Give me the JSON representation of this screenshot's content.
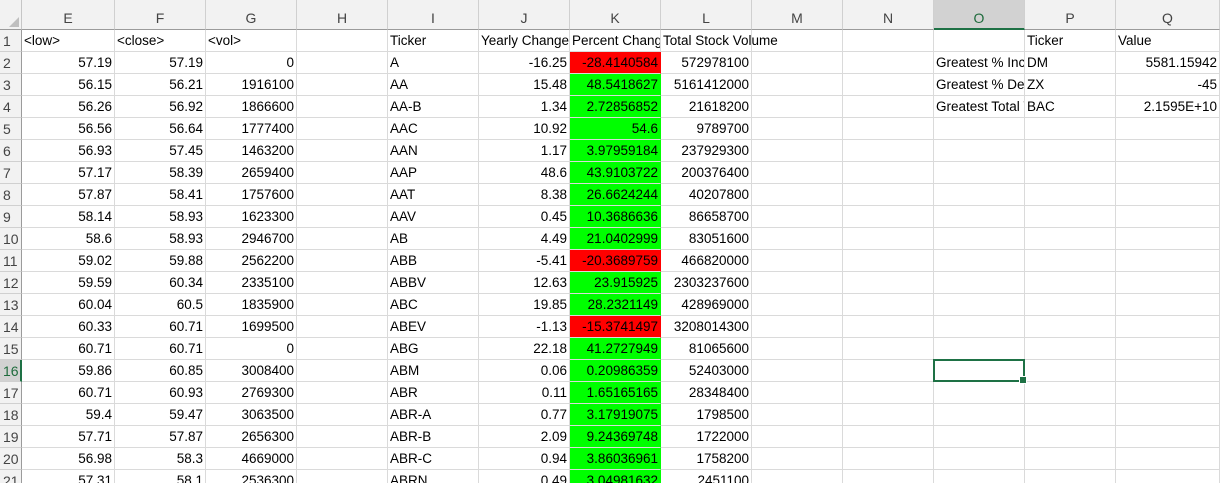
{
  "columns": [
    "E",
    "F",
    "G",
    "H",
    "I",
    "J",
    "K",
    "L",
    "M",
    "N",
    "O",
    "P",
    "Q"
  ],
  "selected_column": "O",
  "selected_row": "16",
  "rows": [
    {
      "n": "1",
      "E": "<low>",
      "F": "<close>",
      "G": "<vol>",
      "I": "Ticker",
      "J": "Yearly Change",
      "K": "Percent Change",
      "L": "Total Stock Volume",
      "P": "Ticker",
      "Q": "Value"
    },
    {
      "n": "2",
      "E": "57.19",
      "F": "57.19",
      "G": "0",
      "I": "A",
      "J": "-16.25",
      "K": "-28.4140584",
      "L": "572978100",
      "O": "Greatest % Increase",
      "P": "DM",
      "Q": "5581.15942"
    },
    {
      "n": "3",
      "E": "56.15",
      "F": "56.21",
      "G": "1916100",
      "I": "AA",
      "J": "15.48",
      "K": "48.5418627",
      "L": "5161412000",
      "O": "Greatest % Decrease",
      "P": "ZX",
      "Q": "-45"
    },
    {
      "n": "4",
      "E": "56.26",
      "F": "56.92",
      "G": "1866600",
      "I": "AA-B",
      "J": "1.34",
      "K": "2.72856852",
      "L": "21618200",
      "O": "Greatest Total Volume",
      "P": "BAC",
      "Q": "2.1595E+10"
    },
    {
      "n": "5",
      "E": "56.56",
      "F": "56.64",
      "G": "1777400",
      "I": "AAC",
      "J": "10.92",
      "K": "54.6",
      "L": "9789700"
    },
    {
      "n": "6",
      "E": "56.93",
      "F": "57.45",
      "G": "1463200",
      "I": "AAN",
      "J": "1.17",
      "K": "3.97959184",
      "L": "237929300"
    },
    {
      "n": "7",
      "E": "57.17",
      "F": "58.39",
      "G": "2659400",
      "I": "AAP",
      "J": "48.6",
      "K": "43.9103722",
      "L": "200376400"
    },
    {
      "n": "8",
      "E": "57.87",
      "F": "58.41",
      "G": "1757600",
      "I": "AAT",
      "J": "8.38",
      "K": "26.6624244",
      "L": "40207800"
    },
    {
      "n": "9",
      "E": "58.14",
      "F": "58.93",
      "G": "1623300",
      "I": "AAV",
      "J": "0.45",
      "K": "10.3686636",
      "L": "86658700"
    },
    {
      "n": "10",
      "E": "58.6",
      "F": "58.93",
      "G": "2946700",
      "I": "AB",
      "J": "4.49",
      "K": "21.0402999",
      "L": "83051600"
    },
    {
      "n": "11",
      "E": "59.02",
      "F": "59.88",
      "G": "2562200",
      "I": "ABB",
      "J": "-5.41",
      "K": "-20.3689759",
      "L": "466820000"
    },
    {
      "n": "12",
      "E": "59.59",
      "F": "60.34",
      "G": "2335100",
      "I": "ABBV",
      "J": "12.63",
      "K": "23.915925",
      "L": "2303237600"
    },
    {
      "n": "13",
      "E": "60.04",
      "F": "60.5",
      "G": "1835900",
      "I": "ABC",
      "J": "19.85",
      "K": "28.2321149",
      "L": "428969000"
    },
    {
      "n": "14",
      "E": "60.33",
      "F": "60.71",
      "G": "1699500",
      "I": "ABEV",
      "J": "-1.13",
      "K": "-15.3741497",
      "L": "3208014300"
    },
    {
      "n": "15",
      "E": "60.71",
      "F": "60.71",
      "G": "0",
      "I": "ABG",
      "J": "22.18",
      "K": "41.2727949",
      "L": "81065600"
    },
    {
      "n": "16",
      "E": "59.86",
      "F": "60.85",
      "G": "3008400",
      "I": "ABM",
      "J": "0.06",
      "K": "0.20986359",
      "L": "52403000"
    },
    {
      "n": "17",
      "E": "60.71",
      "F": "60.93",
      "G": "2769300",
      "I": "ABR",
      "J": "0.11",
      "K": "1.65165165",
      "L": "28348400"
    },
    {
      "n": "18",
      "E": "59.4",
      "F": "59.47",
      "G": "3063500",
      "I": "ABR-A",
      "J": "0.77",
      "K": "3.17919075",
      "L": "1798500"
    },
    {
      "n": "19",
      "E": "57.71",
      "F": "57.87",
      "G": "2656300",
      "I": "ABR-B",
      "J": "2.09",
      "K": "9.24369748",
      "L": "1722000"
    },
    {
      "n": "20",
      "E": "56.98",
      "F": "58.3",
      "G": "4669000",
      "I": "ABR-C",
      "J": "0.94",
      "K": "3.86036961",
      "L": "1758200"
    },
    {
      "n": "21",
      "E": "57.31",
      "F": "58.1",
      "G": "2536300",
      "I": "ABRN",
      "J": "0.49",
      "K": "3.04981632",
      "L": "2451100"
    }
  ],
  "colors": {
    "positive_fill": "#00ff00",
    "negative_fill": "#ff0000",
    "selection": "#1e7145",
    "header_bg": "#f2f2f2"
  }
}
